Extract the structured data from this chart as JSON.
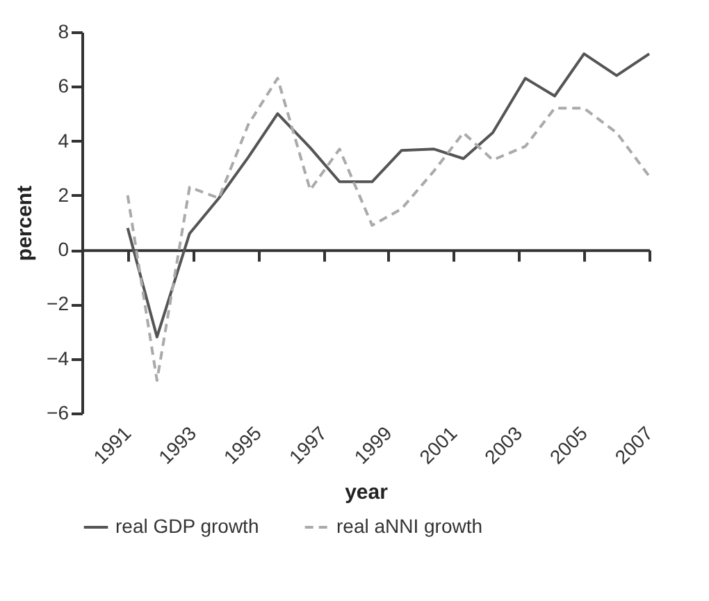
{
  "chart_data": {
    "type": "line",
    "xlabel": "year",
    "ylabel": "percent",
    "x": [
      1991,
      1991.9,
      1992.9,
      1993.8,
      1994.7,
      1995.6,
      1996.6,
      1997.5,
      1998.5,
      1999.4,
      2000.4,
      2001.3,
      2002.2,
      2003.2,
      2004.1,
      2005.0,
      2006.0,
      2007
    ],
    "series": [
      {
        "name": "real GDP growth",
        "color": "#555555",
        "line_style": "solid",
        "values": [
          0.8,
          -3.2,
          0.6,
          1.9,
          3.4,
          5.0,
          3.75,
          2.5,
          2.5,
          3.65,
          3.7,
          3.35,
          4.3,
          6.3,
          5.65,
          7.2,
          6.4,
          7.2
        ]
      },
      {
        "name": "real aNNI growth",
        "color": "#aaaaaa",
        "line_style": "dashed",
        "values": [
          2.0,
          -4.8,
          2.3,
          1.9,
          4.6,
          6.3,
          2.2,
          3.7,
          0.9,
          1.5,
          2.9,
          4.3,
          3.3,
          3.8,
          5.2,
          5.2,
          4.3,
          2.7
        ]
      }
    ],
    "xlim": [
      1989.6,
      2007
    ],
    "xticks": [
      1991,
      1993,
      1995,
      1997,
      1999,
      2001,
      2003,
      2005,
      2007
    ],
    "ylim": [
      -6,
      8
    ],
    "yticks": [
      -6,
      -4,
      -2,
      0,
      2,
      4,
      6,
      8
    ],
    "legend": "bottom"
  }
}
